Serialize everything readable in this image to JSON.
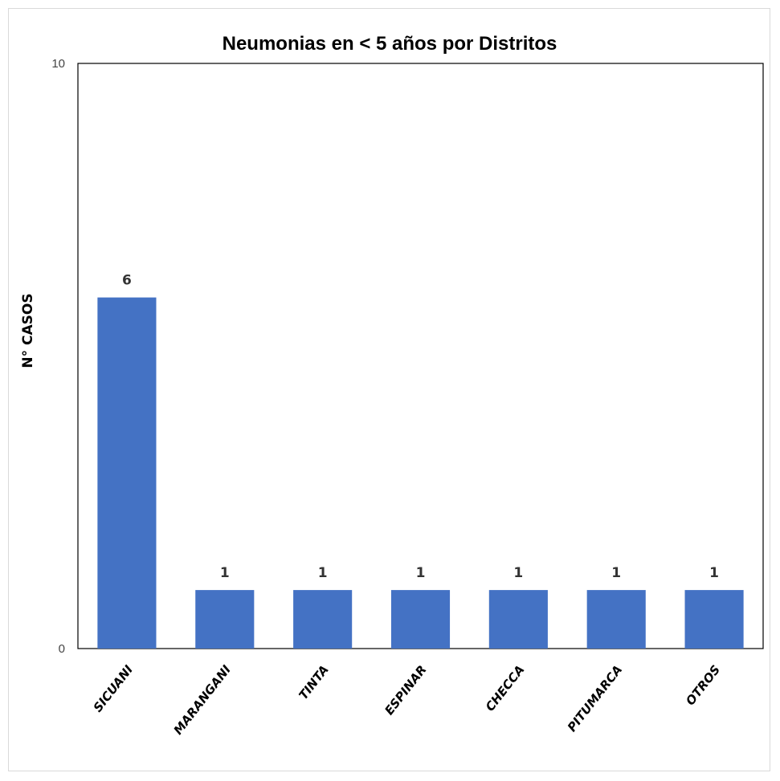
{
  "chart_data": {
    "type": "bar",
    "title": "Neumonias en < 5 años por Distritos",
    "xlabel": "",
    "ylabel": "N° CASOS",
    "categories": [
      "SICUANI",
      "MARANGANI",
      "TINTA",
      "ESPINAR",
      "CHECCA",
      "PITUMARCA",
      "OTROS"
    ],
    "values": [
      6,
      1,
      1,
      1,
      1,
      1,
      1
    ],
    "ylim": [
      0,
      10
    ],
    "yticks": [
      0,
      10
    ],
    "grid": false,
    "legend": "none",
    "bar_color": "#4472c4",
    "data_labels": true
  }
}
